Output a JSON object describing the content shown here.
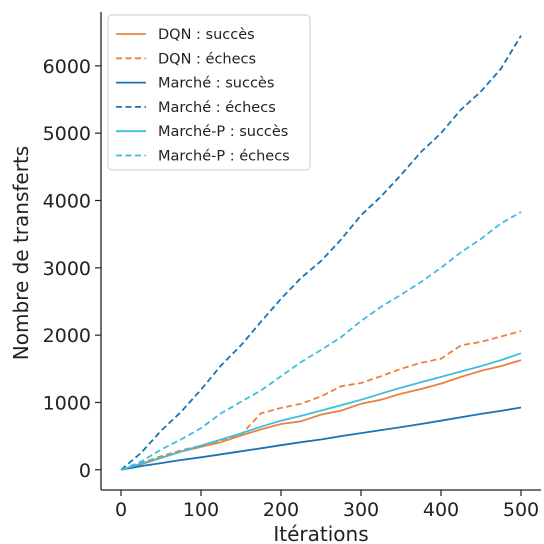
{
  "chart_data": {
    "type": "line",
    "title": "",
    "xlabel": "Itérations",
    "ylabel": "Nombre de transferts",
    "xlim": [
      -25,
      525
    ],
    "ylim": [
      -300,
      6800
    ],
    "xticks": [
      0,
      100,
      200,
      300,
      400,
      500
    ],
    "yticks": [
      0,
      1000,
      2000,
      3000,
      4000,
      5000,
      6000
    ],
    "grid": false,
    "legend": "top-left",
    "series": [
      {
        "name": "DQN : succès",
        "color": "#E8823E",
        "dash": "solid",
        "x": [
          0,
          25,
          50,
          75,
          100,
          125,
          150,
          175,
          200,
          225,
          250,
          275,
          300,
          325,
          350,
          375,
          400,
          425,
          450,
          475,
          500
        ],
        "values": [
          0,
          80,
          175,
          270,
          340,
          410,
          510,
          600,
          680,
          720,
          820,
          880,
          980,
          1040,
          1130,
          1200,
          1280,
          1380,
          1470,
          1540,
          1630
        ]
      },
      {
        "name": "DQN : échecs",
        "color": "#E8823E",
        "dash": "dashed",
        "x": [
          0,
          25,
          50,
          75,
          100,
          125,
          150,
          175,
          200,
          225,
          250,
          275,
          300,
          325,
          350,
          375,
          400,
          425,
          450,
          475,
          500
        ],
        "values": [
          0,
          100,
          200,
          290,
          360,
          440,
          520,
          840,
          920,
          980,
          1090,
          1240,
          1290,
          1390,
          1500,
          1590,
          1650,
          1850,
          1900,
          1980,
          2060
        ]
      },
      {
        "name": "Marché : succès",
        "color": "#1A73B3",
        "dash": "solid",
        "x": [
          0,
          25,
          50,
          75,
          100,
          125,
          150,
          175,
          200,
          225,
          250,
          275,
          300,
          325,
          350,
          375,
          400,
          425,
          450,
          475,
          500
        ],
        "values": [
          0,
          55,
          100,
          145,
          185,
          230,
          275,
          320,
          365,
          410,
          450,
          500,
          545,
          590,
          635,
          680,
          730,
          780,
          830,
          875,
          925
        ]
      },
      {
        "name": "Marché : échecs",
        "color": "#1A73B3",
        "dash": "dashed",
        "x": [
          0,
          25,
          50,
          75,
          100,
          125,
          150,
          175,
          200,
          225,
          250,
          275,
          300,
          325,
          350,
          375,
          400,
          425,
          450,
          475,
          500
        ],
        "values": [
          0,
          250,
          580,
          860,
          1190,
          1550,
          1850,
          2200,
          2540,
          2850,
          3100,
          3420,
          3780,
          4060,
          4380,
          4720,
          5000,
          5350,
          5620,
          5960,
          6450
        ]
      },
      {
        "name": "Marché-P : succès",
        "color": "#3DBDE0",
        "dash": "solid",
        "x": [
          0,
          25,
          50,
          75,
          100,
          125,
          150,
          175,
          200,
          225,
          250,
          275,
          300,
          325,
          350,
          375,
          400,
          425,
          450,
          475,
          500
        ],
        "values": [
          0,
          90,
          180,
          270,
          360,
          450,
          540,
          640,
          730,
          800,
          880,
          960,
          1040,
          1130,
          1220,
          1300,
          1380,
          1460,
          1540,
          1630,
          1730
        ]
      },
      {
        "name": "Marché-P : échecs",
        "color": "#3DBDE0",
        "dash": "dashed",
        "x": [
          0,
          25,
          50,
          75,
          100,
          125,
          150,
          175,
          200,
          225,
          250,
          275,
          300,
          325,
          350,
          375,
          400,
          425,
          450,
          475,
          500
        ],
        "values": [
          0,
          120,
          300,
          450,
          620,
          840,
          1010,
          1180,
          1390,
          1600,
          1780,
          1970,
          2210,
          2420,
          2600,
          2790,
          3000,
          3230,
          3430,
          3660,
          3830
        ]
      }
    ]
  }
}
